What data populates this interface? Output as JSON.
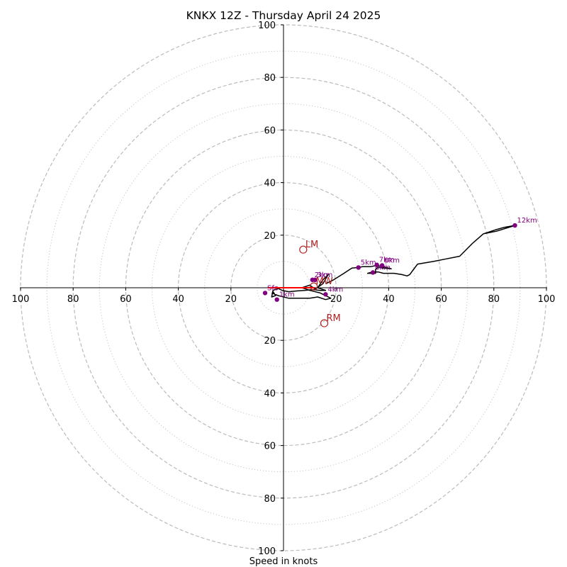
{
  "chart_data": {
    "type": "scatter",
    "subtype": "hodograph",
    "title": "KNKX 12Z - Thursday April 24 2025",
    "xlabel": "Speed in knots",
    "ylabel": "",
    "xlim": [
      -100,
      100
    ],
    "ylim": [
      -100,
      100
    ],
    "ring_major": [
      20,
      40,
      60,
      80,
      100
    ],
    "ring_minor": [
      10,
      30,
      50,
      70,
      90
    ],
    "grid": true,
    "colors": {
      "trace": "#000000",
      "height_points": "#800080",
      "motion": "#b22222",
      "shear_vector": "#ff0000",
      "grid": "#bbbbbb"
    },
    "x_ticks": [
      {
        "v": -100,
        "label": "100"
      },
      {
        "v": -80,
        "label": "80"
      },
      {
        "v": -60,
        "label": "60"
      },
      {
        "v": -40,
        "label": "40"
      },
      {
        "v": -20,
        "label": "20"
      },
      {
        "v": 20,
        "label": "20"
      },
      {
        "v": 40,
        "label": "40"
      },
      {
        "v": 60,
        "label": "60"
      },
      {
        "v": 80,
        "label": "80"
      },
      {
        "v": 100,
        "label": "100"
      }
    ],
    "y_ticks": [
      {
        "v": 100,
        "label": "100"
      },
      {
        "v": 80,
        "label": "80"
      },
      {
        "v": 60,
        "label": "60"
      },
      {
        "v": 40,
        "label": "40"
      },
      {
        "v": 20,
        "label": "20"
      },
      {
        "v": -20,
        "label": "20"
      },
      {
        "v": -40,
        "label": "40"
      },
      {
        "v": -60,
        "label": "60"
      },
      {
        "v": -80,
        "label": "80"
      },
      {
        "v": -100,
        "label": "100"
      }
    ],
    "trace": [
      [
        -4,
        -1.5
      ],
      [
        -3,
        -3
      ],
      [
        -4.5,
        -3.5
      ],
      [
        -4,
        -1
      ],
      [
        -2,
        -0.3
      ],
      [
        -0.5,
        -1
      ],
      [
        2,
        -1.5
      ],
      [
        5,
        -1.2
      ],
      [
        8,
        -1
      ],
      [
        11,
        -0.7
      ],
      [
        14,
        -1
      ],
      [
        16,
        -1
      ],
      [
        13,
        0
      ],
      [
        15,
        3
      ],
      [
        17,
        5
      ],
      [
        15,
        1.5
      ],
      [
        12,
        -0.5
      ],
      [
        10,
        1
      ],
      [
        7,
        0
      ],
      [
        10,
        -1
      ],
      [
        14,
        -2
      ],
      [
        16,
        -3
      ],
      [
        18,
        -4
      ],
      [
        16,
        -4.5
      ],
      [
        13,
        -3.5
      ],
      [
        10,
        -4
      ],
      [
        6,
        -4
      ],
      [
        2,
        -4
      ],
      [
        -2,
        -3
      ],
      [
        -4.5,
        -2
      ]
    ],
    "trace_upper": [
      [
        16,
        1.5
      ],
      [
        19,
        3
      ],
      [
        23,
        5.5
      ],
      [
        26,
        7.5
      ],
      [
        28.5,
        7.7
      ],
      [
        30,
        8
      ],
      [
        33,
        8
      ],
      [
        35.5,
        8.5
      ],
      [
        37.5,
        8
      ],
      [
        40,
        7.5
      ],
      [
        41,
        7.2
      ],
      [
        38,
        7.5
      ],
      [
        36,
        7.8
      ],
      [
        35,
        7
      ],
      [
        35,
        5.5
      ],
      [
        34,
        5.5
      ],
      [
        32,
        5.5
      ],
      [
        34,
        6
      ],
      [
        36,
        6
      ],
      [
        38,
        5.5
      ],
      [
        40,
        5.5
      ],
      [
        42,
        5.5
      ],
      [
        45,
        5
      ],
      [
        47,
        4.5
      ],
      [
        48,
        5
      ],
      [
        49.5,
        7
      ],
      [
        51,
        9
      ],
      [
        57,
        10
      ],
      [
        62,
        11
      ],
      [
        67,
        12
      ],
      [
        72,
        17
      ],
      [
        76,
        20.5
      ],
      [
        80.5,
        22
      ],
      [
        84,
        23
      ],
      [
        88,
        23.7
      ],
      [
        81,
        21.5
      ],
      [
        76,
        20.5
      ]
    ],
    "heights": [
      {
        "label": "Sfc",
        "x": -7,
        "y": -2
      },
      {
        "label": "1km",
        "x": -2.5,
        "y": -4.5
      },
      {
        "label": "2km",
        "x": 11,
        "y": 3
      },
      {
        "label": "3km",
        "x": 12,
        "y": 3
      },
      {
        "label": "4km",
        "x": 16,
        "y": -2.5
      },
      {
        "label": "5km",
        "x": 28.5,
        "y": 7.7
      },
      {
        "label": "6km",
        "x": 34,
        "y": 5.8
      },
      {
        "label": "7km",
        "x": 35.5,
        "y": 8.7
      },
      {
        "label": "8km",
        "x": 37.5,
        "y": 8.5
      },
      {
        "label": "12km",
        "x": 88,
        "y": 23.7
      }
    ],
    "storm_motion": [
      {
        "label": "LM",
        "x": 7.5,
        "y": 14.5
      },
      {
        "label": "RM",
        "x": 15.5,
        "y": -13.5
      },
      {
        "label": "MW",
        "x": 11.5,
        "y": 0.5
      }
    ],
    "mw_annotation": "MW",
    "shear_vector": {
      "from": [
        -6,
        0
      ],
      "to": [
        12,
        0
      ]
    }
  }
}
